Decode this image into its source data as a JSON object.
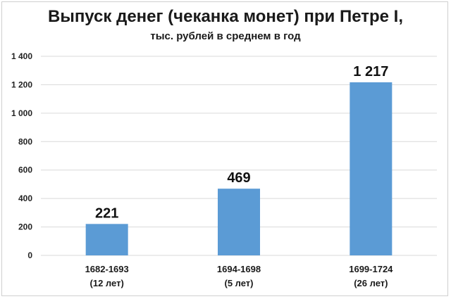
{
  "chart_data": {
    "type": "bar",
    "title": "Выпуск денег (чеканка монет) при Петре I,",
    "subtitle": "тыс. рублей в среднем в год",
    "categories": [
      [
        "1682-1693",
        "(12 лет)"
      ],
      [
        "1694-1698",
        "(5 лет)"
      ],
      [
        "1699-1724",
        "(26 лет)"
      ]
    ],
    "values": [
      221,
      469,
      1217
    ],
    "data_labels": [
      "221",
      "469",
      "1 217"
    ],
    "ylim": [
      0,
      1400
    ],
    "yticks": [
      0,
      200,
      400,
      600,
      800,
      1000,
      1200,
      1400
    ],
    "ytick_labels": [
      "0",
      "200",
      "400",
      "600",
      "800",
      "1 000",
      "1 200",
      "1 400"
    ],
    "grid": true,
    "bar_color": "#5b9bd5",
    "grid_color": "#d9d9d9"
  }
}
